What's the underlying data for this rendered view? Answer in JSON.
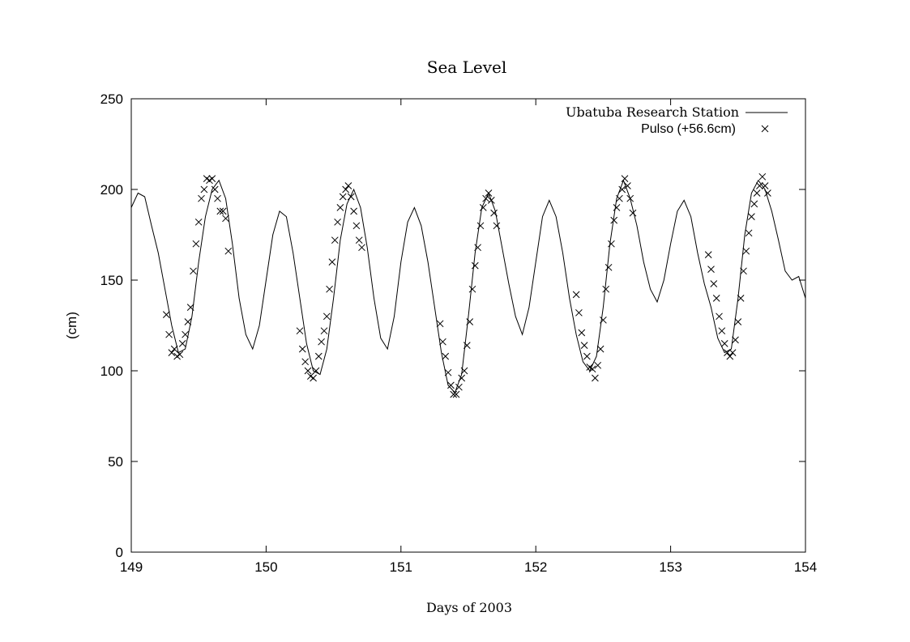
{
  "chart_data": {
    "type": "line",
    "title": "Sea Level",
    "xlabel": "Days of 2003",
    "ylabel": "(cm)",
    "xlim": [
      149,
      154
    ],
    "ylim": [
      0,
      250
    ],
    "xticks": [
      "149",
      "150",
      "151",
      "152",
      "153",
      "154"
    ],
    "yticks": [
      "0",
      "50",
      "100",
      "150",
      "200",
      "250"
    ],
    "grid": false,
    "legend_position": "top-right",
    "colors": {
      "line": "#000000",
      "marker": "#000000",
      "axes": "#000000"
    },
    "series": [
      {
        "name": "Ubatuba Research Station",
        "style": "line",
        "x": [
          149.0,
          149.05,
          149.1,
          149.15,
          149.2,
          149.25,
          149.3,
          149.35,
          149.4,
          149.45,
          149.5,
          149.55,
          149.6,
          149.65,
          149.7,
          149.75,
          149.8,
          149.85,
          149.9,
          149.95,
          150.0,
          150.05,
          150.1,
          150.15,
          150.2,
          150.25,
          150.3,
          150.35,
          150.4,
          150.45,
          150.5,
          150.55,
          150.6,
          150.65,
          150.7,
          150.75,
          150.8,
          150.85,
          150.9,
          150.95,
          151.0,
          151.05,
          151.1,
          151.15,
          151.2,
          151.25,
          151.3,
          151.35,
          151.4,
          151.45,
          151.5,
          151.55,
          151.6,
          151.65,
          151.7,
          151.75,
          151.8,
          151.85,
          151.9,
          151.95,
          152.0,
          152.05,
          152.1,
          152.15,
          152.2,
          152.25,
          152.3,
          152.35,
          152.4,
          152.45,
          152.5,
          152.55,
          152.6,
          152.65,
          152.7,
          152.75,
          152.8,
          152.85,
          152.9,
          152.95,
          153.0,
          153.05,
          153.1,
          153.15,
          153.2,
          153.25,
          153.3,
          153.35,
          153.4,
          153.45,
          153.5,
          153.55,
          153.6,
          153.65,
          153.7,
          153.75,
          153.8,
          153.85,
          153.9,
          153.95,
          154.0
        ],
        "y": [
          190,
          198,
          196,
          180,
          165,
          145,
          125,
          110,
          112,
          130,
          160,
          185,
          200,
          205,
          195,
          170,
          140,
          120,
          112,
          125,
          150,
          175,
          188,
          185,
          165,
          140,
          115,
          100,
          98,
          112,
          140,
          172,
          192,
          200,
          190,
          168,
          140,
          118,
          112,
          130,
          160,
          182,
          190,
          180,
          160,
          135,
          110,
          92,
          88,
          98,
          130,
          165,
          190,
          198,
          188,
          168,
          148,
          130,
          120,
          135,
          160,
          185,
          194,
          185,
          165,
          140,
          120,
          105,
          100,
          108,
          135,
          170,
          195,
          205,
          195,
          180,
          160,
          145,
          138,
          150,
          170,
          188,
          194,
          185,
          165,
          148,
          135,
          118,
          110,
          112,
          140,
          175,
          198,
          205,
          200,
          188,
          172,
          155,
          150,
          152,
          140
        ]
      },
      {
        "name": "Pulso (+56.6cm)",
        "style": "markers",
        "marker": "x",
        "x": [
          149.26,
          149.28,
          149.3,
          149.32,
          149.34,
          149.36,
          149.38,
          149.4,
          149.42,
          149.44,
          149.46,
          149.48,
          149.5,
          149.52,
          149.54,
          149.56,
          149.58,
          149.6,
          149.62,
          149.64,
          149.66,
          149.68,
          149.7,
          149.72,
          150.25,
          150.27,
          150.29,
          150.31,
          150.33,
          150.35,
          150.37,
          150.39,
          150.41,
          150.43,
          150.45,
          150.47,
          150.49,
          150.51,
          150.53,
          150.55,
          150.57,
          150.59,
          150.61,
          150.63,
          150.65,
          150.67,
          150.69,
          150.71,
          151.29,
          151.31,
          151.33,
          151.35,
          151.37,
          151.39,
          151.41,
          151.43,
          151.45,
          151.47,
          151.49,
          151.51,
          151.53,
          151.55,
          151.57,
          151.59,
          151.61,
          151.63,
          151.65,
          151.67,
          151.69,
          151.71,
          152.3,
          152.32,
          152.34,
          152.36,
          152.38,
          152.4,
          152.42,
          152.44,
          152.46,
          152.48,
          152.5,
          152.52,
          152.54,
          152.56,
          152.58,
          152.6,
          152.62,
          152.64,
          152.66,
          152.68,
          152.7,
          152.72,
          153.28,
          153.3,
          153.32,
          153.34,
          153.36,
          153.38,
          153.4,
          153.42,
          153.44,
          153.46,
          153.48,
          153.5,
          153.52,
          153.54,
          153.56,
          153.58,
          153.6,
          153.62,
          153.64,
          153.66,
          153.68,
          153.7,
          153.72
        ],
        "y": [
          131,
          120,
          110,
          112,
          108,
          109,
          115,
          120,
          127,
          135,
          155,
          170,
          182,
          195,
          200,
          206,
          205,
          206,
          200,
          195,
          188,
          188,
          184,
          166,
          122,
          112,
          105,
          100,
          97,
          96,
          100,
          108,
          116,
          122,
          130,
          145,
          160,
          172,
          182,
          190,
          196,
          200,
          202,
          196,
          188,
          180,
          172,
          168,
          126,
          116,
          108,
          99,
          92,
          87,
          87,
          91,
          96,
          100,
          114,
          127,
          145,
          158,
          168,
          180,
          190,
          195,
          198,
          194,
          187,
          180,
          142,
          132,
          121,
          114,
          108,
          102,
          101,
          96,
          103,
          112,
          128,
          145,
          157,
          170,
          183,
          190,
          195,
          200,
          206,
          202,
          195,
          187,
          164,
          156,
          148,
          140,
          130,
          122,
          115,
          110,
          108,
          110,
          117,
          127,
          140,
          155,
          166,
          176,
          185,
          192,
          198,
          202,
          207,
          202,
          198
        ],
        "note_scale": ""
      }
    ]
  }
}
